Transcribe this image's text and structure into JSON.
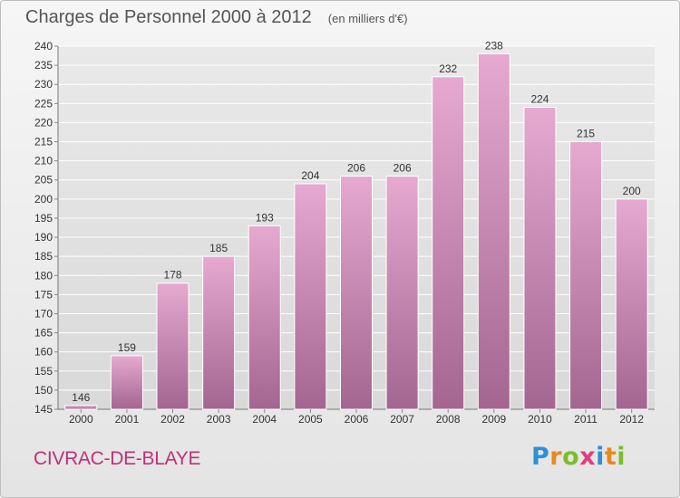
{
  "header": {
    "title": "Charges de Personnel 2000 à 2012",
    "subtitle": "(en milliers d'€)"
  },
  "footer": {
    "commune": "CIVRAC-DE-BLAYE",
    "logo": {
      "letters": [
        "P",
        "r",
        "o",
        "x",
        "i",
        "t",
        "i"
      ],
      "letter_colors": [
        "#2f8fd6",
        "#e8891e",
        "#7abf2a",
        "#e23c7e",
        "#2f8fd6",
        "#e8891e",
        "#7abf2a"
      ]
    }
  },
  "colors": {
    "bar_top": "#e6a9d0",
    "bar_bottom": "#a36690",
    "title": "#555555",
    "commune": "#c0307a"
  },
  "chart_data": {
    "type": "bar",
    "categories": [
      "2000",
      "2001",
      "2002",
      "2003",
      "2004",
      "2005",
      "2006",
      "2007",
      "2008",
      "2009",
      "2010",
      "2011",
      "2012"
    ],
    "values": [
      146,
      159,
      178,
      185,
      193,
      204,
      206,
      206,
      232,
      238,
      224,
      215,
      200
    ],
    "data_labels": [
      "146",
      "159",
      "178",
      "185",
      "193",
      "204",
      "206",
      "206",
      "232",
      "238",
      "224",
      "215",
      "200"
    ],
    "title": "Charges de Personnel 2000 à 2012",
    "subtitle": "(en milliers d'€)",
    "xlabel": "",
    "ylabel": "",
    "ylim": [
      145,
      240
    ],
    "yticks": [
      145,
      150,
      155,
      160,
      165,
      170,
      175,
      180,
      185,
      190,
      195,
      200,
      205,
      210,
      215,
      220,
      225,
      230,
      235,
      240
    ],
    "grid": true
  }
}
